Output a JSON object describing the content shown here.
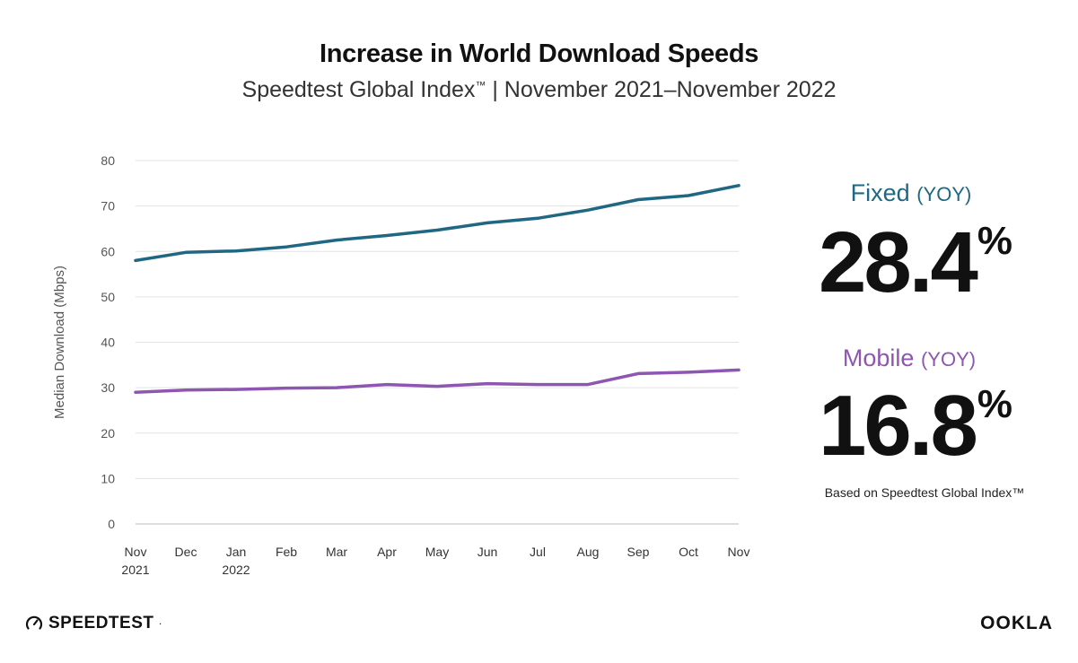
{
  "header": {
    "title": "Increase in World Download Speeds",
    "subtitle": "Speedtest Global Index",
    "subtitle_tm": "™",
    "subtitle_rest": " | November 2021–November 2022"
  },
  "stats": {
    "fixed": {
      "name": "Fixed",
      "yoy_label": "(YOY)",
      "value": "28.4",
      "unit": "%"
    },
    "mobile": {
      "name": "Mobile",
      "yoy_label": "(YOY)",
      "value": "16.8",
      "unit": "%"
    },
    "footnote": "Based on Speedtest Global Index™"
  },
  "logos": {
    "left": {
      "icon": "speedometer-icon",
      "text": "SPEEDTEST",
      "mark": "·"
    },
    "right": {
      "text": "OOKLA"
    }
  },
  "colors": {
    "fixed": "#1f6782",
    "mobile": "#8e55b1",
    "grid": "#e3e3e3",
    "axis_text": "#555555"
  },
  "chart_data": {
    "type": "line",
    "title": "Increase in World Download Speeds",
    "subtitle": "Speedtest Global Index™ | November 2021–November 2022",
    "categories": [
      "Nov\n2021",
      "Dec",
      "Jan\n2022",
      "Feb",
      "Mar",
      "Apr",
      "May",
      "Jun",
      "Jul",
      "Aug",
      "Sep",
      "Oct",
      "Nov"
    ],
    "xlabel": "",
    "ylabel": "Median Download (Mbps)",
    "ylim": [
      0,
      80
    ],
    "yticks": [
      0,
      10,
      20,
      30,
      40,
      50,
      60,
      70,
      80
    ],
    "grid": true,
    "legend": "none",
    "series": [
      {
        "name": "Fixed",
        "color": "#1f6782",
        "values": [
          58.0,
          59.8,
          60.1,
          61.0,
          62.5,
          63.5,
          64.7,
          66.3,
          67.3,
          69.1,
          71.4,
          72.3,
          74.5
        ]
      },
      {
        "name": "Mobile",
        "color": "#8e55b1",
        "values": [
          29.0,
          29.5,
          29.6,
          29.9,
          30.0,
          30.7,
          30.3,
          30.9,
          30.7,
          30.7,
          33.1,
          33.4,
          33.9
        ]
      }
    ]
  }
}
